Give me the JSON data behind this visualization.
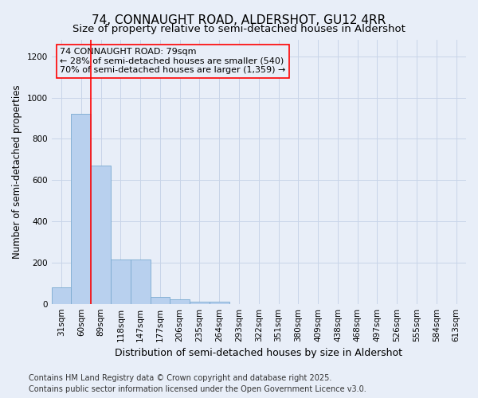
{
  "title": "74, CONNAUGHT ROAD, ALDERSHOT, GU12 4RR",
  "subtitle": "Size of property relative to semi-detached houses in Aldershot",
  "xlabel": "Distribution of semi-detached houses by size in Aldershot",
  "ylabel": "Number of semi-detached properties",
  "categories": [
    "31sqm",
    "60sqm",
    "89sqm",
    "118sqm",
    "147sqm",
    "177sqm",
    "206sqm",
    "235sqm",
    "264sqm",
    "293sqm",
    "322sqm",
    "351sqm",
    "380sqm",
    "409sqm",
    "438sqm",
    "468sqm",
    "497sqm",
    "526sqm",
    "555sqm",
    "584sqm",
    "613sqm"
  ],
  "values": [
    80,
    920,
    670,
    215,
    215,
    35,
    20,
    12,
    12,
    0,
    0,
    0,
    0,
    0,
    0,
    0,
    0,
    0,
    0,
    0,
    0
  ],
  "bar_color": "#b8d0ee",
  "bar_edge_color": "#7aaad0",
  "red_line_bin": 1,
  "annotation_title": "74 CONNAUGHT ROAD: 79sqm",
  "annotation_line2": "← 28% of semi-detached houses are smaller (540)",
  "annotation_line3": "70% of semi-detached houses are larger (1,359) →",
  "ylim": [
    0,
    1280
  ],
  "yticks": [
    0,
    200,
    400,
    600,
    800,
    1000,
    1200
  ],
  "footer1": "Contains HM Land Registry data © Crown copyright and database right 2025.",
  "footer2": "Contains public sector information licensed under the Open Government Licence v3.0.",
  "bg_color": "#e8eef8",
  "grid_color": "#c8d4e8",
  "title_fontsize": 11,
  "subtitle_fontsize": 9.5,
  "ylabel_fontsize": 8.5,
  "xlabel_fontsize": 9,
  "annotation_fontsize": 8,
  "tick_fontsize": 7.5,
  "footer_fontsize": 7
}
